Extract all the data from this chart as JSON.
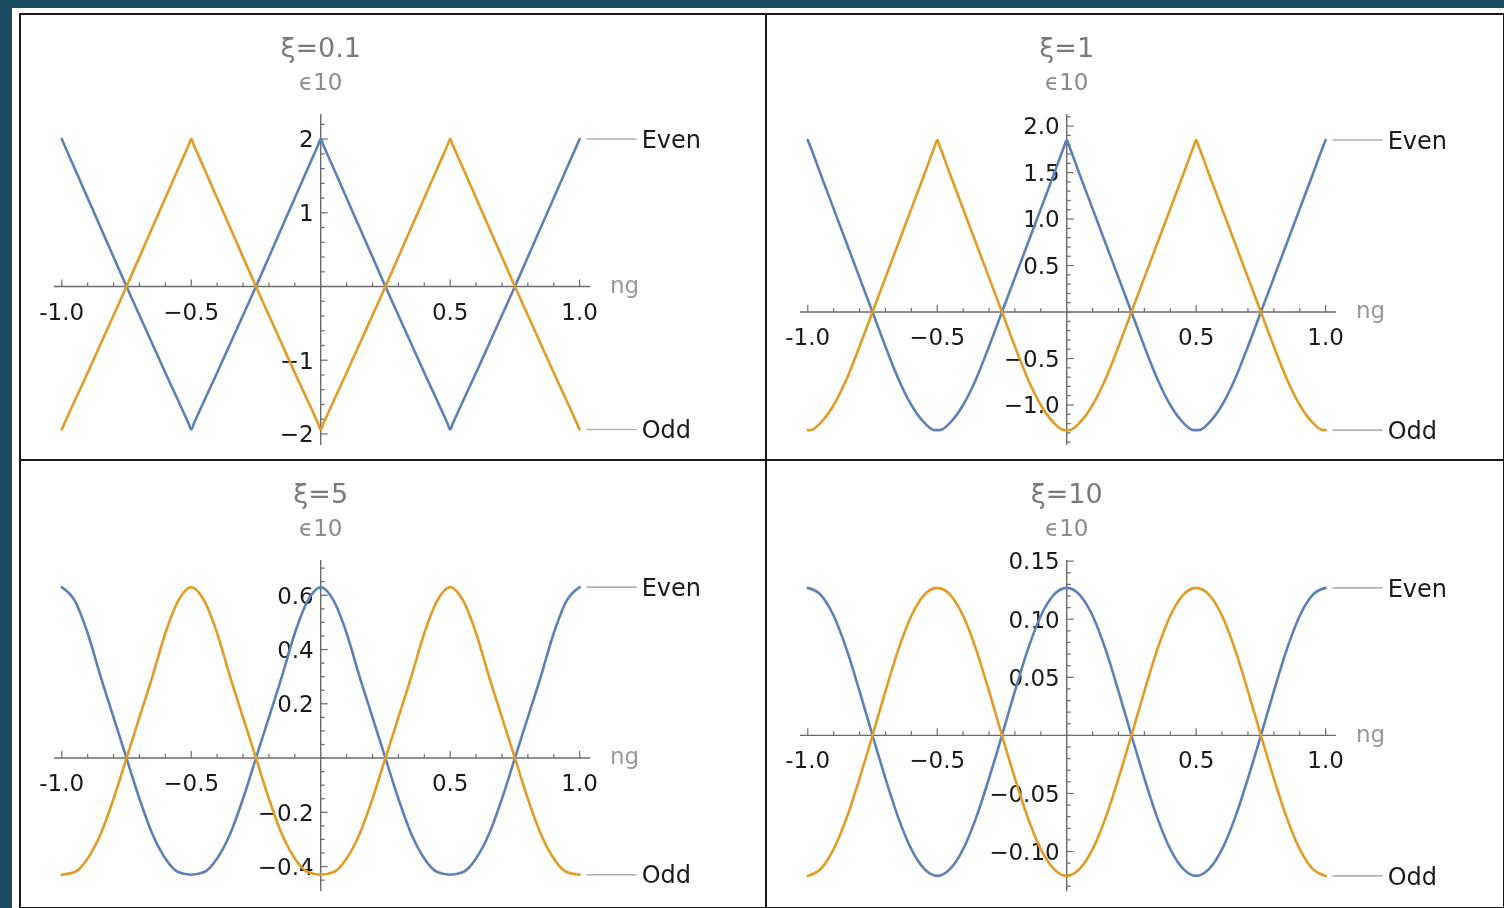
{
  "chart_data": [
    {
      "type": "line",
      "title": "ξ=0.1",
      "xlabel": "ng",
      "ylabel": "ϵ10",
      "legend": "right",
      "x": [
        -1,
        -0.99,
        -0.95,
        -0.9,
        -0.85,
        -0.8,
        -0.75,
        -0.7,
        -0.65,
        -0.6,
        -0.55,
        -0.51,
        -0.5,
        -0.49,
        -0.45,
        -0.4,
        -0.35,
        -0.3,
        -0.25,
        -0.2,
        -0.15,
        -0.1,
        -0.05,
        -0.01,
        0,
        0.01,
        0.05,
        0.1,
        0.15,
        0.2,
        0.25,
        0.3,
        0.35,
        0.4,
        0.45,
        0.49,
        0.5,
        0.51,
        0.55,
        0.6,
        0.65,
        0.7,
        0.75,
        0.8,
        0.85,
        0.9,
        0.95,
        0.99,
        1
      ],
      "series": [
        {
          "name": "Even",
          "color": "#5e81b5",
          "values": [
            2.0,
            1.92,
            1.6,
            1.2,
            0.8,
            0.4,
            0,
            -0.39,
            -0.78,
            -1.17,
            -1.55,
            -1.86,
            -1.94,
            -1.86,
            -1.55,
            -1.17,
            -0.78,
            -0.39,
            0,
            0.4,
            0.8,
            1.2,
            1.6,
            1.92,
            2.0,
            1.92,
            1.6,
            1.2,
            0.8,
            0.4,
            0,
            -0.39,
            -0.78,
            -1.17,
            -1.55,
            -1.86,
            -1.94,
            -1.86,
            -1.55,
            -1.17,
            -0.78,
            -0.39,
            0,
            0.4,
            0.8,
            1.2,
            1.6,
            1.92,
            2.0
          ]
        },
        {
          "name": "Odd",
          "color": "#e19c24",
          "values": [
            -1.94,
            -1.86,
            -1.55,
            -1.17,
            -0.78,
            -0.39,
            0,
            0.4,
            0.8,
            1.2,
            1.6,
            1.92,
            2.0,
            1.92,
            1.6,
            1.2,
            0.8,
            0.4,
            0,
            -0.39,
            -0.78,
            -1.17,
            -1.55,
            -1.86,
            -1.94,
            -1.86,
            -1.55,
            -1.17,
            -0.78,
            -0.39,
            0,
            0.4,
            0.8,
            1.2,
            1.6,
            1.92,
            2.0,
            1.92,
            1.6,
            1.2,
            0.8,
            0.4,
            0,
            -0.39,
            -0.78,
            -1.17,
            -1.55,
            -1.86,
            -1.94
          ]
        }
      ],
      "xlim": [
        -1.03,
        1.04
      ],
      "ylim": [
        -2.15,
        2.34
      ],
      "xticks": [
        {
          "value": -1,
          "label": "-1.0"
        },
        {
          "value": -0.9,
          "label": null
        },
        {
          "value": -0.8,
          "label": null
        },
        {
          "value": -0.7,
          "label": null
        },
        {
          "value": -0.6,
          "label": null
        },
        {
          "value": -0.5,
          "label": "−0.5"
        },
        {
          "value": -0.4,
          "label": null
        },
        {
          "value": -0.3,
          "label": null
        },
        {
          "value": -0.2,
          "label": null
        },
        {
          "value": -0.1,
          "label": null
        },
        {
          "value": 0,
          "label": null
        },
        {
          "value": 0.1,
          "label": null
        },
        {
          "value": 0.2,
          "label": null
        },
        {
          "value": 0.3,
          "label": null
        },
        {
          "value": 0.4,
          "label": null
        },
        {
          "value": 0.5,
          "label": "0.5"
        },
        {
          "value": 0.6,
          "label": null
        },
        {
          "value": 0.7,
          "label": null
        },
        {
          "value": 0.8,
          "label": null
        },
        {
          "value": 0.9,
          "label": null
        },
        {
          "value": 1,
          "label": "1.0"
        }
      ],
      "yticks": [
        {
          "value": -2,
          "label": "−2"
        },
        {
          "value": -1.8,
          "label": null
        },
        {
          "value": -1.6,
          "label": null
        },
        {
          "value": -1.4,
          "label": null
        },
        {
          "value": -1.2,
          "label": null
        },
        {
          "value": -1,
          "label": "−1"
        },
        {
          "value": -0.8,
          "label": null
        },
        {
          "value": -0.6,
          "label": null
        },
        {
          "value": -0.4,
          "label": null
        },
        {
          "value": -0.2,
          "label": null
        },
        {
          "value": 0,
          "label": null
        },
        {
          "value": 0.2,
          "label": null
        },
        {
          "value": 0.4,
          "label": null
        },
        {
          "value": 0.6,
          "label": null
        },
        {
          "value": 0.8,
          "label": null
        },
        {
          "value": 1,
          "label": "1"
        },
        {
          "value": 1.2,
          "label": null
        },
        {
          "value": 1.4,
          "label": null
        },
        {
          "value": 1.6,
          "label": null
        },
        {
          "value": 1.8,
          "label": null
        },
        {
          "value": 2,
          "label": "2"
        },
        {
          "value": 2.2,
          "label": null
        }
      ]
    },
    {
      "type": "line",
      "title": "ξ=1",
      "xlabel": "ng",
      "ylabel": "ϵ10",
      "legend": "right",
      "x": [
        -1,
        -0.99,
        -0.95,
        -0.9,
        -0.85,
        -0.8,
        -0.75,
        -0.7,
        -0.65,
        -0.6,
        -0.55,
        -0.51,
        -0.5,
        -0.49,
        -0.45,
        -0.4,
        -0.35,
        -0.3,
        -0.25,
        -0.2,
        -0.15,
        -0.1,
        -0.05,
        -0.01,
        0,
        0.01,
        0.05,
        0.1,
        0.15,
        0.2,
        0.25,
        0.3,
        0.35,
        0.4,
        0.45,
        0.49,
        0.5,
        0.51,
        0.55,
        0.6,
        0.65,
        0.7,
        0.75,
        0.8,
        0.85,
        0.9,
        0.95,
        0.99,
        1
      ],
      "series": [
        {
          "name": "Even",
          "color": "#5e81b5",
          "values": [
            1.85,
            1.78,
            1.48,
            1.11,
            0.74,
            0.37,
            0,
            -0.37,
            -0.72,
            -1,
            -1.19,
            -1.27,
            -1.27,
            -1.27,
            -1.19,
            -1,
            -0.72,
            -0.37,
            0,
            0.37,
            0.74,
            1.11,
            1.48,
            1.78,
            1.85,
            1.78,
            1.48,
            1.11,
            0.74,
            0.37,
            0,
            -0.37,
            -0.72,
            -1,
            -1.19,
            -1.27,
            -1.27,
            -1.27,
            -1.19,
            -1,
            -0.72,
            -0.37,
            0,
            0.37,
            0.74,
            1.11,
            1.48,
            1.78,
            1.85
          ]
        },
        {
          "name": "Odd",
          "color": "#e19c24",
          "values": [
            -1.27,
            -1.27,
            -1.19,
            -1,
            -0.72,
            -0.37,
            0,
            0.37,
            0.74,
            1.11,
            1.48,
            1.78,
            1.85,
            1.78,
            1.48,
            1.11,
            0.74,
            0.37,
            0,
            -0.37,
            -0.72,
            -1,
            -1.19,
            -1.27,
            -1.27,
            -1.27,
            -1.19,
            -1,
            -0.72,
            -0.37,
            0,
            0.37,
            0.74,
            1.11,
            1.48,
            1.78,
            1.85,
            1.78,
            1.48,
            1.11,
            0.74,
            0.37,
            0,
            -0.37,
            -0.72,
            -1,
            -1.19,
            -1.27,
            -1.27
          ]
        }
      ],
      "xlim": [
        -1.03,
        1.04
      ],
      "ylim": [
        -1.43,
        2.13
      ],
      "xticks": [
        {
          "value": -1,
          "label": "-1.0"
        },
        {
          "value": -0.9,
          "label": null
        },
        {
          "value": -0.8,
          "label": null
        },
        {
          "value": -0.7,
          "label": null
        },
        {
          "value": -0.6,
          "label": null
        },
        {
          "value": -0.5,
          "label": "−0.5"
        },
        {
          "value": -0.4,
          "label": null
        },
        {
          "value": -0.3,
          "label": null
        },
        {
          "value": -0.2,
          "label": null
        },
        {
          "value": -0.1,
          "label": null
        },
        {
          "value": 0,
          "label": null
        },
        {
          "value": 0.1,
          "label": null
        },
        {
          "value": 0.2,
          "label": null
        },
        {
          "value": 0.3,
          "label": null
        },
        {
          "value": 0.4,
          "label": null
        },
        {
          "value": 0.5,
          "label": "0.5"
        },
        {
          "value": 0.6,
          "label": null
        },
        {
          "value": 0.7,
          "label": null
        },
        {
          "value": 0.8,
          "label": null
        },
        {
          "value": 0.9,
          "label": null
        },
        {
          "value": 1,
          "label": "1.0"
        }
      ],
      "yticks": [
        {
          "value": -1.4,
          "label": null
        },
        {
          "value": -1.3,
          "label": null
        },
        {
          "value": -1.2,
          "label": null
        },
        {
          "value": -1.1,
          "label": null
        },
        {
          "value": -1,
          "label": "−1.0"
        },
        {
          "value": -0.9,
          "label": null
        },
        {
          "value": -0.8,
          "label": null
        },
        {
          "value": -0.7,
          "label": null
        },
        {
          "value": -0.6,
          "label": null
        },
        {
          "value": -0.5,
          "label": "−0.5"
        },
        {
          "value": -0.4,
          "label": null
        },
        {
          "value": -0.3,
          "label": null
        },
        {
          "value": -0.2,
          "label": null
        },
        {
          "value": -0.1,
          "label": null
        },
        {
          "value": 0,
          "label": null
        },
        {
          "value": 0.1,
          "label": null
        },
        {
          "value": 0.2,
          "label": null
        },
        {
          "value": 0.3,
          "label": null
        },
        {
          "value": 0.4,
          "label": null
        },
        {
          "value": 0.5,
          "label": "0.5"
        },
        {
          "value": 0.6,
          "label": null
        },
        {
          "value": 0.7,
          "label": null
        },
        {
          "value": 0.8,
          "label": null
        },
        {
          "value": 0.9,
          "label": null
        },
        {
          "value": 1,
          "label": "1.0"
        },
        {
          "value": 1.1,
          "label": null
        },
        {
          "value": 1.2,
          "label": null
        },
        {
          "value": 1.3,
          "label": null
        },
        {
          "value": 1.4,
          "label": null
        },
        {
          "value": 1.5,
          "label": "1.5"
        },
        {
          "value": 1.6,
          "label": null
        },
        {
          "value": 1.7,
          "label": null
        },
        {
          "value": 1.8,
          "label": null
        },
        {
          "value": 1.9,
          "label": null
        },
        {
          "value": 2,
          "label": "2.0"
        },
        {
          "value": 2.1,
          "label": null
        }
      ]
    },
    {
      "type": "line",
      "title": "ξ=5",
      "xlabel": "ng",
      "ylabel": "ϵ10",
      "legend": "right",
      "x": [
        -1,
        -0.95,
        -0.9,
        -0.85,
        -0.8,
        -0.75,
        -0.7,
        -0.65,
        -0.6,
        -0.55,
        -0.5,
        -0.45,
        -0.4,
        -0.35,
        -0.3,
        -0.25,
        -0.2,
        -0.15,
        -0.1,
        -0.05,
        0,
        0.05,
        0.1,
        0.15,
        0.2,
        0.25,
        0.3,
        0.35,
        0.4,
        0.45,
        0.5,
        0.55,
        0.6,
        0.65,
        0.7,
        0.75,
        0.8,
        0.85,
        0.9,
        0.95,
        1
      ],
      "series": [
        {
          "name": "Even",
          "color": "#5e81b5",
          "values": [
            0.63,
            0.58,
            0.46,
            0.3,
            0.15,
            0,
            -0.15,
            -0.28,
            -0.37,
            -0.42,
            -0.43,
            -0.42,
            -0.37,
            -0.28,
            -0.15,
            0,
            0.15,
            0.3,
            0.46,
            0.58,
            0.63,
            0.58,
            0.46,
            0.3,
            0.15,
            0,
            -0.15,
            -0.28,
            -0.37,
            -0.42,
            -0.43,
            -0.42,
            -0.37,
            -0.28,
            -0.15,
            0,
            0.15,
            0.3,
            0.46,
            0.58,
            0.63
          ]
        },
        {
          "name": "Odd",
          "color": "#e19c24",
          "values": [
            -0.43,
            -0.42,
            -0.37,
            -0.28,
            -0.15,
            0,
            0.15,
            0.3,
            0.46,
            0.58,
            0.63,
            0.58,
            0.46,
            0.3,
            0.15,
            0,
            -0.15,
            -0.28,
            -0.37,
            -0.42,
            -0.43,
            -0.42,
            -0.37,
            -0.28,
            -0.15,
            0,
            0.15,
            0.3,
            0.46,
            0.58,
            0.63,
            0.58,
            0.46,
            0.3,
            0.15,
            0,
            -0.15,
            -0.28,
            -0.37,
            -0.42,
            -0.43
          ]
        }
      ],
      "xlim": [
        -1.03,
        1.04
      ],
      "ylim": [
        -0.49,
        0.73
      ],
      "xticks": [
        {
          "value": -1,
          "label": "-1.0"
        },
        {
          "value": -0.9,
          "label": null
        },
        {
          "value": -0.8,
          "label": null
        },
        {
          "value": -0.7,
          "label": null
        },
        {
          "value": -0.6,
          "label": null
        },
        {
          "value": -0.5,
          "label": "−0.5"
        },
        {
          "value": -0.4,
          "label": null
        },
        {
          "value": -0.3,
          "label": null
        },
        {
          "value": -0.2,
          "label": null
        },
        {
          "value": -0.1,
          "label": null
        },
        {
          "value": 0,
          "label": null
        },
        {
          "value": 0.1,
          "label": null
        },
        {
          "value": 0.2,
          "label": null
        },
        {
          "value": 0.3,
          "label": null
        },
        {
          "value": 0.4,
          "label": null
        },
        {
          "value": 0.5,
          "label": "0.5"
        },
        {
          "value": 0.6,
          "label": null
        },
        {
          "value": 0.7,
          "label": null
        },
        {
          "value": 0.8,
          "label": null
        },
        {
          "value": 0.9,
          "label": null
        },
        {
          "value": 1,
          "label": "1.0"
        }
      ],
      "yticks": [
        {
          "value": -0.45,
          "label": null
        },
        {
          "value": -0.4,
          "label": "−0.4"
        },
        {
          "value": -0.35,
          "label": null
        },
        {
          "value": -0.3,
          "label": null
        },
        {
          "value": -0.25,
          "label": null
        },
        {
          "value": -0.2,
          "label": "−0.2"
        },
        {
          "value": -0.15,
          "label": null
        },
        {
          "value": -0.1,
          "label": null
        },
        {
          "value": -0.05,
          "label": null
        },
        {
          "value": 0,
          "label": null
        },
        {
          "value": 0.05,
          "label": null
        },
        {
          "value": 0.1,
          "label": null
        },
        {
          "value": 0.15,
          "label": null
        },
        {
          "value": 0.2,
          "label": "0.2"
        },
        {
          "value": 0.25,
          "label": null
        },
        {
          "value": 0.3,
          "label": null
        },
        {
          "value": 0.35,
          "label": null
        },
        {
          "value": 0.4,
          "label": "0.4"
        },
        {
          "value": 0.45,
          "label": null
        },
        {
          "value": 0.5,
          "label": null
        },
        {
          "value": 0.55,
          "label": null
        },
        {
          "value": 0.6,
          "label": "0.6"
        },
        {
          "value": 0.65,
          "label": null
        },
        {
          "value": 0.7,
          "label": null
        }
      ]
    },
    {
      "type": "line",
      "title": "ξ=10",
      "xlabel": "ng",
      "ylabel": "ϵ10",
      "legend": "right",
      "x": [
        -1,
        -0.95,
        -0.9,
        -0.85,
        -0.8,
        -0.75,
        -0.7,
        -0.65,
        -0.6,
        -0.55,
        -0.5,
        -0.45,
        -0.4,
        -0.35,
        -0.3,
        -0.25,
        -0.2,
        -0.15,
        -0.1,
        -0.05,
        0,
        0.05,
        0.1,
        0.15,
        0.2,
        0.25,
        0.3,
        0.35,
        0.4,
        0.45,
        0.5,
        0.55,
        0.6,
        0.65,
        0.7,
        0.75,
        0.8,
        0.85,
        0.9,
        0.95,
        1
      ],
      "series": [
        {
          "name": "Even",
          "color": "#5e81b5",
          "values": [
            0.127,
            0.121,
            0.103,
            0.074,
            0.038,
            0,
            -0.037,
            -0.071,
            -0.098,
            -0.115,
            -0.121,
            -0.115,
            -0.098,
            -0.071,
            -0.037,
            0,
            0.038,
            0.074,
            0.103,
            0.121,
            0.127,
            0.121,
            0.103,
            0.074,
            0.038,
            0,
            -0.037,
            -0.071,
            -0.098,
            -0.115,
            -0.121,
            -0.115,
            -0.098,
            -0.071,
            -0.037,
            0,
            0.038,
            0.074,
            0.103,
            0.121,
            0.127
          ]
        },
        {
          "name": "Odd",
          "color": "#e19c24",
          "values": [
            -0.121,
            -0.115,
            -0.098,
            -0.071,
            -0.037,
            0,
            0.038,
            0.074,
            0.103,
            0.121,
            0.127,
            0.121,
            0.103,
            0.074,
            0.038,
            0,
            -0.037,
            -0.071,
            -0.098,
            -0.115,
            -0.121,
            -0.115,
            -0.098,
            -0.071,
            -0.037,
            0,
            0.038,
            0.074,
            0.103,
            0.121,
            0.127,
            0.121,
            0.103,
            0.074,
            0.038,
            0,
            -0.037,
            -0.071,
            -0.098,
            -0.115,
            -0.121
          ]
        }
      ],
      "xlim": [
        -1.03,
        1.04
      ],
      "ylim": [
        -0.134,
        0.151
      ],
      "xticks": [
        {
          "value": -1,
          "label": "-1.0"
        },
        {
          "value": -0.9,
          "label": null
        },
        {
          "value": -0.8,
          "label": null
        },
        {
          "value": -0.7,
          "label": null
        },
        {
          "value": -0.6,
          "label": null
        },
        {
          "value": -0.5,
          "label": "−0.5"
        },
        {
          "value": -0.4,
          "label": null
        },
        {
          "value": -0.3,
          "label": null
        },
        {
          "value": -0.2,
          "label": null
        },
        {
          "value": -0.1,
          "label": null
        },
        {
          "value": 0,
          "label": null
        },
        {
          "value": 0.1,
          "label": null
        },
        {
          "value": 0.2,
          "label": null
        },
        {
          "value": 0.3,
          "label": null
        },
        {
          "value": 0.4,
          "label": null
        },
        {
          "value": 0.5,
          "label": "0.5"
        },
        {
          "value": 0.6,
          "label": null
        },
        {
          "value": 0.7,
          "label": null
        },
        {
          "value": 0.8,
          "label": null
        },
        {
          "value": 0.9,
          "label": null
        },
        {
          "value": 1,
          "label": "1.0"
        }
      ],
      "yticks": [
        {
          "value": -0.13,
          "label": null
        },
        {
          "value": -0.12,
          "label": null
        },
        {
          "value": -0.11,
          "label": null
        },
        {
          "value": -0.1,
          "label": "−0.10"
        },
        {
          "value": -0.09,
          "label": null
        },
        {
          "value": -0.08,
          "label": null
        },
        {
          "value": -0.07,
          "label": null
        },
        {
          "value": -0.06,
          "label": null
        },
        {
          "value": -0.05,
          "label": "−0.05"
        },
        {
          "value": -0.04,
          "label": null
        },
        {
          "value": -0.03,
          "label": null
        },
        {
          "value": -0.02,
          "label": null
        },
        {
          "value": -0.01,
          "label": null
        },
        {
          "value": 0,
          "label": null
        },
        {
          "value": 0.01,
          "label": null
        },
        {
          "value": 0.02,
          "label": null
        },
        {
          "value": 0.03,
          "label": null
        },
        {
          "value": 0.04,
          "label": null
        },
        {
          "value": 0.05,
          "label": "0.05"
        },
        {
          "value": 0.06,
          "label": null
        },
        {
          "value": 0.07,
          "label": null
        },
        {
          "value": 0.08,
          "label": null
        },
        {
          "value": 0.09,
          "label": null
        },
        {
          "value": 0.1,
          "label": "0.10"
        },
        {
          "value": 0.11,
          "label": null
        },
        {
          "value": 0.12,
          "label": null
        },
        {
          "value": 0.13,
          "label": null
        },
        {
          "value": 0.14,
          "label": null
        },
        {
          "value": 0.15,
          "label": "0.15"
        }
      ]
    }
  ]
}
